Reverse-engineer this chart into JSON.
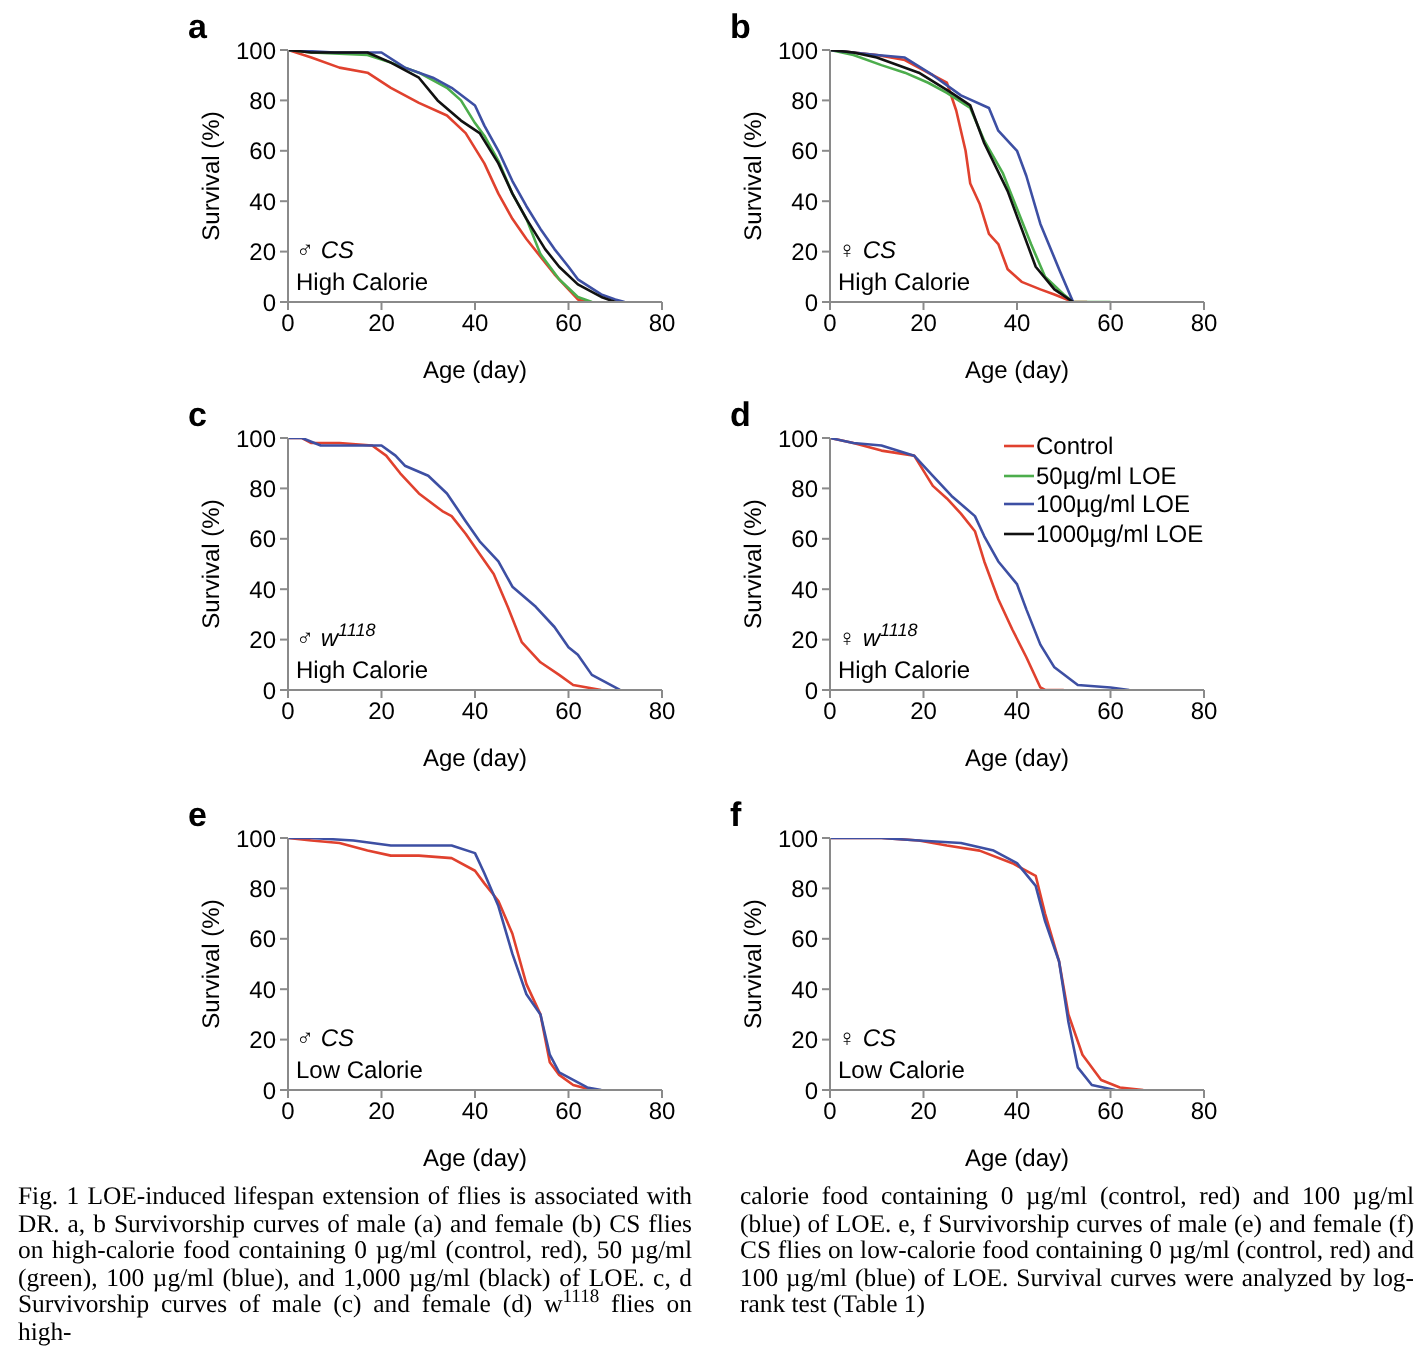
{
  "chart_data": [
    {
      "type": "line",
      "title": "a",
      "xlabel": "Age (day)",
      "ylabel": "Survival (%)",
      "xlim": [
        0,
        80
      ],
      "xticks": [
        0,
        20,
        40,
        60,
        80
      ],
      "ylim": [
        0,
        100
      ],
      "yticks": [
        0,
        20,
        40,
        60,
        80,
        100
      ],
      "line_style": "solid",
      "annotations": [
        "♂ CS",
        "High Calorie"
      ],
      "series": [
        {
          "color": "#e0412e",
          "x": [
            0,
            5,
            11,
            17,
            22,
            28,
            34,
            38,
            42,
            45,
            48,
            51,
            54,
            57,
            60,
            62,
            64
          ],
          "values": [
            100,
            97,
            93,
            91,
            85,
            79,
            74,
            67,
            55,
            43,
            33,
            25,
            18,
            11,
            5,
            1,
            0
          ]
        },
        {
          "color": "#4cad4c",
          "x": [
            0,
            5,
            17,
            22,
            28,
            34,
            37,
            40,
            42,
            45,
            48,
            51,
            54,
            58,
            62,
            65
          ],
          "values": [
            100,
            99,
            98,
            95,
            91,
            85,
            80,
            71,
            66,
            56,
            43,
            33,
            19,
            9,
            2,
            0
          ]
        },
        {
          "color": "#3d4fa3",
          "x": [
            0,
            10,
            20,
            25,
            31,
            35,
            40,
            42,
            45,
            48,
            51,
            54,
            57,
            60,
            62,
            67,
            70,
            72
          ],
          "values": [
            100,
            99,
            99,
            93,
            89,
            85,
            78,
            70,
            60,
            48,
            38,
            29,
            21,
            14,
            9,
            3,
            1,
            0
          ]
        },
        {
          "color": "#111111",
          "x": [
            0,
            5,
            17,
            22,
            28,
            32,
            37,
            41,
            45,
            48,
            51,
            55,
            58,
            62,
            67,
            70
          ],
          "values": [
            100,
            99,
            99,
            95,
            89,
            80,
            72,
            67,
            55,
            43,
            33,
            21,
            14,
            7,
            2,
            0
          ]
        }
      ]
    },
    {
      "type": "line",
      "title": "b",
      "xlabel": "Age (day)",
      "ylabel": "Survival (%)",
      "xlim": [
        0,
        80
      ],
      "xticks": [
        0,
        20,
        40,
        60,
        80
      ],
      "ylim": [
        0,
        100
      ],
      "yticks": [
        0,
        20,
        40,
        60,
        80,
        100
      ],
      "line_style": "solid",
      "annotations": [
        "♀ CS",
        "High Calorie"
      ],
      "series": [
        {
          "color": "#e0412e",
          "x": [
            0,
            5,
            10,
            16,
            25,
            27,
            29,
            30,
            32,
            34,
            36,
            38,
            41,
            45,
            48,
            52,
            55
          ],
          "values": [
            100,
            99,
            98,
            96,
            87,
            76,
            60,
            47,
            39,
            27,
            23,
            13,
            8,
            5,
            3,
            0,
            0
          ]
        },
        {
          "color": "#4cad4c",
          "x": [
            0,
            5,
            11,
            16,
            21,
            25,
            30,
            33,
            37,
            40,
            43,
            46,
            50,
            52,
            60
          ],
          "values": [
            100,
            98,
            94,
            91,
            87,
            83,
            77,
            64,
            51,
            37,
            23,
            10,
            3,
            0,
            0
          ]
        },
        {
          "color": "#3d4fa3",
          "x": [
            0,
            5,
            10,
            16,
            22,
            28,
            34,
            36,
            40,
            42,
            45,
            49,
            52
          ],
          "values": [
            100,
            99,
            98,
            97,
            90,
            82,
            77,
            68,
            60,
            50,
            31,
            13,
            0
          ]
        },
        {
          "color": "#111111",
          "x": [
            0,
            5,
            10,
            19,
            26,
            30,
            33,
            38,
            41,
            44,
            48,
            52
          ],
          "values": [
            100,
            99,
            97,
            91,
            83,
            78,
            63,
            44,
            29,
            14,
            5,
            0
          ]
        }
      ]
    },
    {
      "type": "line",
      "title": "c",
      "xlabel": "Age (day)",
      "ylabel": "Survival (%)",
      "xlim": [
        0,
        80
      ],
      "xticks": [
        0,
        20,
        40,
        60,
        80
      ],
      "ylim": [
        0,
        100
      ],
      "yticks": [
        0,
        20,
        40,
        60,
        80,
        100
      ],
      "line_style": "solid",
      "annotations": [
        "♂ w$^{1118}$",
        "High Calorie"
      ],
      "series": [
        {
          "color": "#e0412e",
          "x": [
            0,
            3,
            5,
            11,
            18,
            21,
            24,
            28,
            33,
            35,
            38,
            41,
            44,
            47,
            50,
            54,
            58,
            61,
            64,
            67
          ],
          "values": [
            100,
            100,
            98,
            98,
            97,
            93,
            86,
            78,
            71,
            69,
            62,
            54,
            46,
            33,
            19,
            11,
            6,
            2,
            1,
            0
          ]
        },
        {
          "color": "#3d4fa3",
          "x": [
            0,
            3,
            7,
            13,
            20,
            23,
            25,
            30,
            34,
            38,
            41,
            45,
            48,
            53,
            57,
            60,
            62,
            65,
            70,
            71
          ],
          "values": [
            100,
            100,
            97,
            97,
            97,
            93,
            89,
            85,
            78,
            67,
            59,
            51,
            41,
            33,
            25,
            17,
            14,
            6,
            1,
            0
          ]
        }
      ]
    },
    {
      "type": "line",
      "title": "d",
      "xlabel": "Age (day)",
      "ylabel": "Survival (%)",
      "xlim": [
        0,
        80
      ],
      "xticks": [
        0,
        20,
        40,
        60,
        80
      ],
      "ylim": [
        0,
        100
      ],
      "yticks": [
        0,
        20,
        40,
        60,
        80,
        100
      ],
      "line_style": "solid",
      "legend": "top right",
      "annotations": [
        "♀ w$^{1118}$",
        "High Calorie"
      ],
      "series": [
        {
          "name": "Control",
          "color": "#e0412e",
          "x": [
            0,
            5,
            11,
            18,
            22,
            25,
            28,
            31,
            33,
            36,
            39,
            42,
            45,
            46,
            50
          ],
          "values": [
            100,
            98,
            95,
            93,
            81,
            76,
            70,
            63,
            51,
            36,
            24,
            13,
            1,
            0,
            0
          ]
        },
        {
          "name": "50µg/ml LOE",
          "color": "#4cad4c"
        },
        {
          "name": "100µg/ml LOE",
          "color": "#3d4fa3",
          "x": [
            0,
            5,
            11,
            18,
            22,
            26,
            31,
            33,
            36,
            40,
            42,
            45,
            48,
            53,
            60,
            64
          ],
          "values": [
            100,
            98,
            97,
            93,
            85,
            77,
            69,
            61,
            51,
            42,
            32,
            18,
            9,
            2,
            1,
            0
          ]
        },
        {
          "name": "1000µg/ml LOE",
          "color": "#111111"
        }
      ]
    },
    {
      "type": "line",
      "title": "e",
      "xlabel": "Age (day)",
      "ylabel": "Survival (%)",
      "xlim": [
        0,
        80
      ],
      "xticks": [
        0,
        20,
        40,
        60,
        80
      ],
      "ylim": [
        0,
        100
      ],
      "yticks": [
        0,
        20,
        40,
        60,
        80,
        100
      ],
      "line_style": "solid",
      "annotations": [
        "♂ CS",
        "Low Calorie"
      ],
      "series": [
        {
          "color": "#e0412e",
          "x": [
            0,
            5,
            11,
            17,
            22,
            28,
            35,
            40,
            42,
            45,
            48,
            51,
            54,
            56,
            58,
            61,
            65
          ],
          "values": [
            100,
            99,
            98,
            95,
            93,
            93,
            92,
            87,
            82,
            75,
            62,
            42,
            30,
            11,
            6,
            2,
            0
          ]
        },
        {
          "color": "#3d4fa3",
          "x": [
            0,
            5,
            14,
            22,
            28,
            35,
            40,
            42,
            45,
            48,
            51,
            54,
            56,
            58,
            61,
            64,
            67
          ],
          "values": [
            100,
            100,
            99,
            97,
            97,
            97,
            94,
            86,
            73,
            54,
            38,
            30,
            14,
            7,
            4,
            1,
            0
          ]
        }
      ]
    },
    {
      "type": "line",
      "title": "f",
      "xlabel": "Age (day)",
      "ylabel": "Survival (%)",
      "xlim": [
        0,
        80
      ],
      "xticks": [
        0,
        20,
        40,
        60,
        80
      ],
      "ylim": [
        0,
        100
      ],
      "yticks": [
        0,
        20,
        40,
        60,
        80,
        100
      ],
      "line_style": "solid",
      "annotations": [
        "♀ CS",
        "Low Calorie"
      ],
      "series": [
        {
          "color": "#e0412e",
          "x": [
            0,
            11,
            19,
            25,
            32,
            39,
            44,
            46,
            49,
            51,
            54,
            58,
            62,
            67
          ],
          "values": [
            100,
            100,
            99,
            97,
            95,
            90,
            85,
            70,
            51,
            30,
            14,
            4,
            1,
            0
          ]
        },
        {
          "color": "#3d4fa3",
          "x": [
            0,
            11,
            19,
            28,
            35,
            40,
            44,
            46,
            49,
            51,
            53,
            56,
            61
          ],
          "values": [
            100,
            100,
            99,
            98,
            95,
            90,
            81,
            67,
            51,
            27,
            9,
            2,
            0
          ]
        }
      ]
    },
    {
      "type": "other",
      "annotations": [
        "Fig. 1 LOE-induced lifespan extension of flies is associated with DR. a, b Survivorship curves of male (a) and female (b) CS flies on high-calorie food containing 0 µg/ml (control, red), 50 µg/ml (green), 100 µg/ml (blue), and 1,000 µg/ml (black) of LOE. c, d Survivorship curves of male (c) and female (d) w$^{1118}$ flies on high-",
        "calorie food containing 0 µg/ml (control, red) and 100 µg/ml (blue) of LOE. e, f Survivorship curves of male (e) and female (f) CS flies on low-calorie food containing 0 µg/ml (control, red) and 100 µg/ml (blue) of LOE. Survival curves were analyzed by log-rank test (Table 1)"
      ]
    }
  ]
}
